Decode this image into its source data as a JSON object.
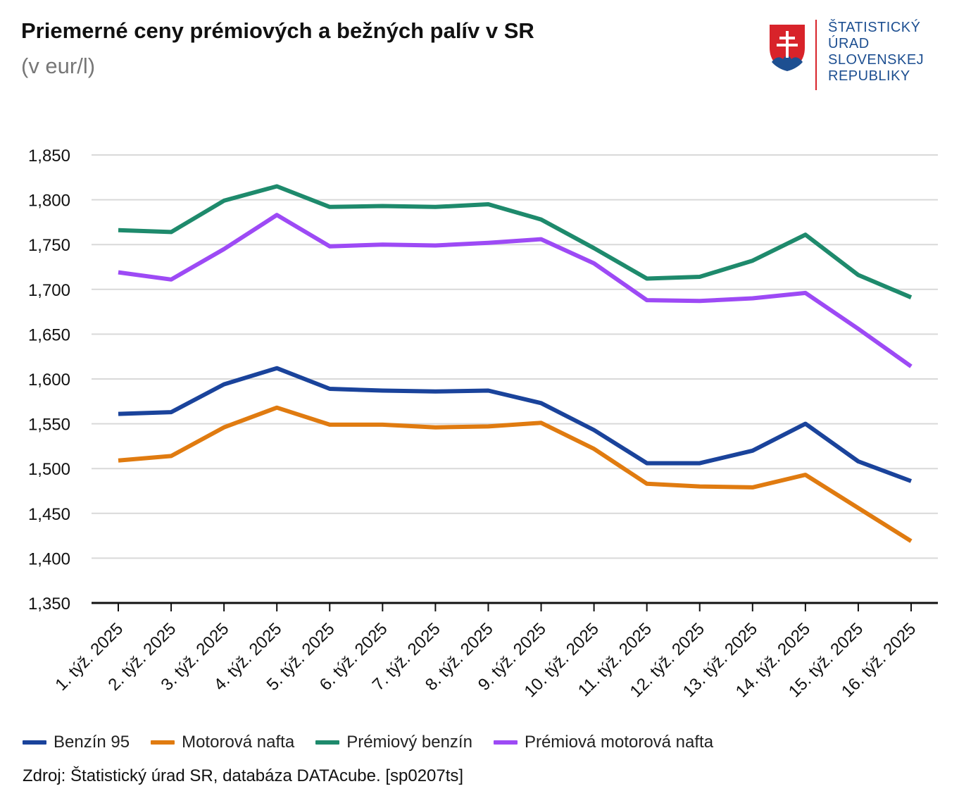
{
  "header": {
    "title": "Priemerné ceny prémiových a bežných palív v SR",
    "subtitle": "(v eur/l)"
  },
  "logo": {
    "lines": [
      "ŠTATISTICKÝ",
      "ÚRAD",
      "SLOVENSKEJ",
      "REPUBLIKY"
    ],
    "colors": {
      "text": "#1d4f91",
      "accent": "#d8232a"
    }
  },
  "footer": {
    "source": "Zdroj: Štatistický úrad SR, databáza DATAcube. [sp0207ts]"
  },
  "chart_data": {
    "type": "line",
    "title": "Priemerné ceny prémiových a bežných palív v SR",
    "subtitle": "(v eur/l)",
    "xlabel": "",
    "ylabel": "",
    "ylim": [
      1.35,
      1.85
    ],
    "yticks": [
      "1,350",
      "1,400",
      "1,450",
      "1,500",
      "1,550",
      "1,600",
      "1,650",
      "1,700",
      "1,750",
      "1,800",
      "1,850"
    ],
    "ytick_values": [
      1.35,
      1.4,
      1.45,
      1.5,
      1.55,
      1.6,
      1.65,
      1.7,
      1.75,
      1.8,
      1.85
    ],
    "grid": true,
    "legend_position": "bottom-left",
    "categories": [
      "1. týž. 2025",
      "2. týž. 2025",
      "3. týž. 2025",
      "4. týž. 2025",
      "5. týž. 2025",
      "6. týž. 2025",
      "7. týž. 2025",
      "8. týž. 2025",
      "9. týž. 2025",
      "10. týž. 2025",
      "11. týž. 2025",
      "12. týž. 2025",
      "13. týž. 2025",
      "14. týž. 2025",
      "15. týž. 2025",
      "16. týž. 2025"
    ],
    "series": [
      {
        "name": "Benzín 95",
        "color": "#1a439b",
        "values": [
          1.561,
          1.563,
          1.594,
          1.612,
          1.589,
          1.587,
          1.586,
          1.587,
          1.573,
          1.543,
          1.506,
          1.506,
          1.52,
          1.55,
          1.508,
          1.486
        ]
      },
      {
        "name": "Motorová nafta",
        "color": "#e07b10",
        "values": [
          1.509,
          1.514,
          1.546,
          1.568,
          1.549,
          1.549,
          1.546,
          1.547,
          1.551,
          1.522,
          1.483,
          1.48,
          1.479,
          1.493,
          1.456,
          1.419
        ]
      },
      {
        "name": "Prémiový benzín",
        "color": "#1e8a6c",
        "values": [
          1.766,
          1.764,
          1.799,
          1.815,
          1.792,
          1.793,
          1.792,
          1.795,
          1.778,
          1.746,
          1.712,
          1.714,
          1.732,
          1.761,
          1.716,
          1.691
        ]
      },
      {
        "name": "Prémiová motorová nafta",
        "color": "#9d4af5",
        "values": [
          1.719,
          1.711,
          1.745,
          1.783,
          1.748,
          1.75,
          1.749,
          1.752,
          1.756,
          1.729,
          1.688,
          1.687,
          1.69,
          1.696,
          1.656,
          1.614
        ]
      }
    ]
  }
}
